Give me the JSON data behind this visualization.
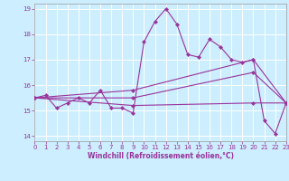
{
  "xlabel": "Windchill (Refroidissement éolien,°C)",
  "bg_color": "#cceeff",
  "line_color": "#993399",
  "xlim": [
    0,
    23
  ],
  "ylim": [
    13.8,
    19.2
  ],
  "yticks": [
    14,
    15,
    16,
    17,
    18,
    19
  ],
  "xticks": [
    0,
    1,
    2,
    3,
    4,
    5,
    6,
    7,
    8,
    9,
    10,
    11,
    12,
    13,
    14,
    15,
    16,
    17,
    18,
    19,
    20,
    21,
    22,
    23
  ],
  "series1_x": [
    0,
    1,
    2,
    3,
    4,
    5,
    6,
    7,
    8,
    9,
    10,
    11,
    12,
    13,
    14,
    15,
    16,
    17,
    18,
    19,
    20,
    21,
    22,
    23
  ],
  "series1_y": [
    15.5,
    15.6,
    15.1,
    15.3,
    15.5,
    15.3,
    15.8,
    15.1,
    15.1,
    14.9,
    17.7,
    18.5,
    19.0,
    18.4,
    17.2,
    17.1,
    17.8,
    17.5,
    17.0,
    16.9,
    17.0,
    14.6,
    14.1,
    15.3
  ],
  "series2_x": [
    0,
    9,
    20,
    23
  ],
  "series2_y": [
    15.5,
    15.2,
    15.3,
    15.3
  ],
  "series3_x": [
    0,
    9,
    20,
    23
  ],
  "series3_y": [
    15.5,
    15.5,
    16.5,
    15.3
  ],
  "series4_x": [
    0,
    9,
    20,
    23
  ],
  "series4_y": [
    15.5,
    15.8,
    17.0,
    15.3
  ]
}
